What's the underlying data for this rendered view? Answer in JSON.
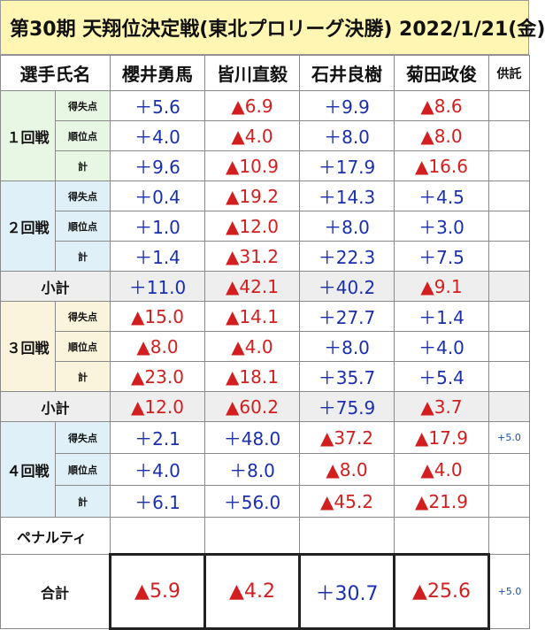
{
  "title": "第30期 天翔位決定戦(東北プロリーグ決勝) 2022/1/21(金)",
  "header": {
    "label": "選手氏名",
    "players": [
      "櫻井勇馬",
      "皆川直毅",
      "石井良樹",
      "菊田政俊"
    ],
    "kyotaku": "供託"
  },
  "rounds": [
    {
      "name": "１回戦",
      "rows": [
        {
          "label": "得失点",
          "values": [
            "＋5.6",
            "▲6.9",
            "＋9.9",
            "▲8.6"
          ],
          "kyotaku": ""
        },
        {
          "label": "順位点",
          "values": [
            "＋4.0",
            "▲4.0",
            "＋8.0",
            "▲8.0"
          ],
          "kyotaku": ""
        },
        {
          "label": "計",
          "values": [
            "＋9.6",
            "▲10.9",
            "＋17.9",
            "▲16.6"
          ],
          "kyotaku": ""
        }
      ]
    },
    {
      "name": "２回戦",
      "rows": [
        {
          "label": "得失点",
          "values": [
            "＋0.4",
            "▲19.2",
            "＋14.3",
            "＋4.5"
          ],
          "kyotaku": ""
        },
        {
          "label": "順位点",
          "values": [
            "＋1.0",
            "▲12.0",
            "＋8.0",
            "＋3.0"
          ],
          "kyotaku": ""
        },
        {
          "label": "計",
          "values": [
            "＋1.4",
            "▲31.2",
            "＋22.3",
            "＋7.5"
          ],
          "kyotaku": ""
        }
      ]
    },
    {
      "name": "３回戦",
      "rows": [
        {
          "label": "得失点",
          "values": [
            "▲15.0",
            "▲14.1",
            "＋27.7",
            "＋1.4"
          ],
          "kyotaku": ""
        },
        {
          "label": "順位点",
          "values": [
            "▲8.0",
            "▲4.0",
            "＋8.0",
            "＋4.0"
          ],
          "kyotaku": ""
        },
        {
          "label": "計",
          "values": [
            "▲23.0",
            "▲18.1",
            "＋35.7",
            "＋5.4"
          ],
          "kyotaku": ""
        }
      ]
    },
    {
      "name": "４回戦",
      "rows": [
        {
          "label": "得失点",
          "values": [
            "＋2.1",
            "＋48.0",
            "▲37.2",
            "▲17.9"
          ],
          "kyotaku": "+5.0"
        },
        {
          "label": "順位点",
          "values": [
            "＋4.0",
            "＋8.0",
            "▲8.0",
            "▲4.0"
          ],
          "kyotaku": ""
        },
        {
          "label": "計",
          "values": [
            "＋6.1",
            "＋56.0",
            "▲45.2",
            "▲21.9"
          ],
          "kyotaku": ""
        }
      ]
    }
  ],
  "subtotals": [
    {
      "label": "小計",
      "values": [
        "＋11.0",
        "▲42.1",
        "＋40.2",
        "▲9.1"
      ],
      "kyotaku": ""
    },
    {
      "label": "小計",
      "values": [
        "▲12.0",
        "▲60.2",
        "＋75.9",
        "▲3.7"
      ],
      "kyotaku": ""
    }
  ],
  "penalty": {
    "label": "ペナルティ",
    "values": [
      "",
      "",
      "",
      ""
    ],
    "kyotaku": ""
  },
  "total": {
    "label": "合計",
    "values": [
      "▲5.9",
      "▲4.2",
      "＋30.7",
      "▲25.6"
    ],
    "kyotaku": "+5.0"
  },
  "colors": {
    "positive": "#1a2fae",
    "negative": "#d21e1e",
    "title_bg": "#fff6b3",
    "round1_bg": "#e8f6e4",
    "round2_bg": "#dff0f8",
    "round3_bg": "#fbf4dc",
    "round4_bg": "#dff0f8",
    "subtotal_bg": "#eeeeee"
  }
}
